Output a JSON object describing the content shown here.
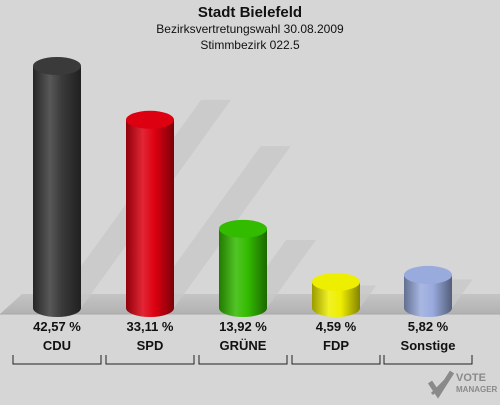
{
  "title": "Stadt Bielefeld",
  "subtitle1": "Bezirksvertretungswahl 30.08.2009",
  "subtitle2": "Stimmbezirk 022.5",
  "logo": {
    "line1": "VOTE",
    "line2": "MANAGER"
  },
  "chart_data": {
    "type": "bar",
    "categories": [
      "CDU",
      "SPD",
      "GRÜNE",
      "FDP",
      "Sonstige"
    ],
    "values": [
      42.57,
      33.11,
      13.92,
      4.59,
      5.82
    ],
    "value_labels": [
      "42,57 %",
      "33,11 %",
      "13,92 %",
      "4,59 %",
      "5,82 %"
    ],
    "colors": [
      "#3a3a3a",
      "#dd0011",
      "#33bb00",
      "#eeee00",
      "#99aadd"
    ],
    "ylim": [
      0,
      45
    ],
    "grid": false
  }
}
